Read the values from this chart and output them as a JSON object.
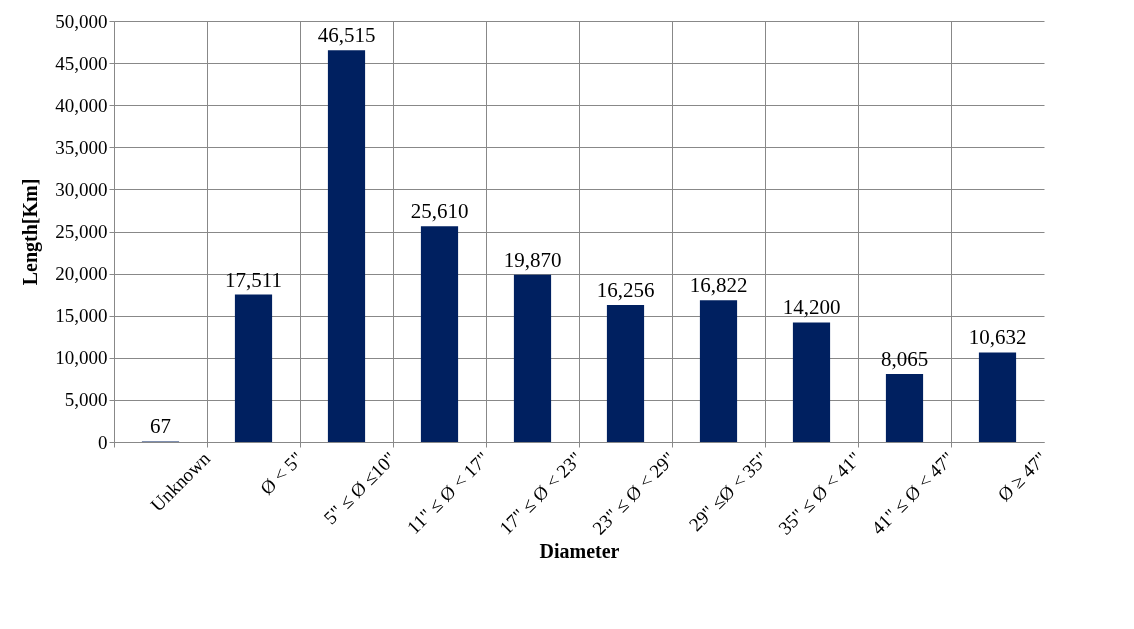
{
  "chart_data": {
    "type": "bar",
    "xlabel": "Diameter",
    "ylabel": "Length[Km]",
    "categories": [
      "Unknown",
      "Ø < 5\"",
      "5\" ≤ Ø ≤10\"",
      "11\" ≤ Ø < 17\"",
      "17\" ≤ Ø < 23\"",
      "23\" ≤ Ø < 29\"",
      "29\" ≤Ø < 35\"",
      "35\" ≤ Ø < 41\"",
      "41\" ≤ Ø < 47\"",
      "Ø ≥ 47\""
    ],
    "values": [
      67,
      17511,
      46515,
      25610,
      19870,
      16256,
      16822,
      14200,
      8065,
      10632
    ],
    "value_labels": [
      "67",
      "17,511",
      "46,515",
      "25,610",
      "19,870",
      "16,256",
      "16,822",
      "14,200",
      "8,065",
      "10,632"
    ],
    "color": "#002060",
    "ylim": [
      0,
      50000
    ],
    "yticks": [
      0,
      {
        "value": 5000,
        "label": "5,000"
      },
      {
        "value": 10000,
        "label": "10,000"
      },
      {
        "value": 15000,
        "label": "15,000"
      },
      {
        "value": 20000,
        "label": "20,000"
      },
      {
        "value": 25000,
        "label": "25,000"
      },
      {
        "value": 30000,
        "label": "30,000"
      },
      {
        "value": 35000,
        "label": "35,000"
      },
      {
        "value": 40000,
        "label": "40,000"
      },
      {
        "value": 45000,
        "label": "45,000"
      },
      {
        "value": 50000,
        "label": "50,000"
      }
    ],
    "grid": true
  }
}
